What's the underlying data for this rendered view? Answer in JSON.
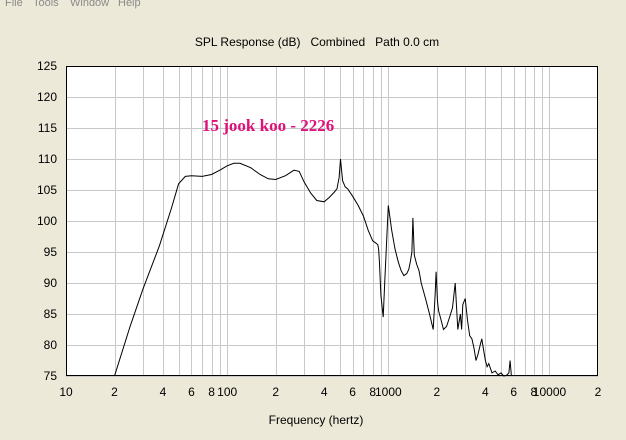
{
  "menu": {
    "items": [
      "File",
      "Tools",
      "Window",
      "Help"
    ]
  },
  "chart_data": {
    "type": "line",
    "title": "SPL Response (dB)   Combined   Path 0.0 cm",
    "annotation": "15 jook koo - 2226",
    "xlabel": "Frequency (hertz)",
    "ylabel": "",
    "x_scale": "log",
    "xlim": [
      10,
      20000
    ],
    "ylim": [
      75,
      125
    ],
    "grid": true,
    "yticks": [
      75,
      80,
      85,
      90,
      95,
      100,
      105,
      110,
      115,
      120,
      125
    ],
    "xticks": [
      {
        "value": 10,
        "label": "10"
      },
      {
        "value": 20,
        "label": "2"
      },
      {
        "value": 40,
        "label": "4"
      },
      {
        "value": 60,
        "label": "6"
      },
      {
        "value": 80,
        "label": "8"
      },
      {
        "value": 100,
        "label": "100"
      },
      {
        "value": 200,
        "label": "2"
      },
      {
        "value": 400,
        "label": "4"
      },
      {
        "value": 600,
        "label": "6"
      },
      {
        "value": 800,
        "label": "8"
      },
      {
        "value": 1000,
        "label": "1000"
      },
      {
        "value": 2000,
        "label": "2"
      },
      {
        "value": 4000,
        "label": "4"
      },
      {
        "value": 6000,
        "label": "6"
      },
      {
        "value": 8000,
        "label": "8"
      },
      {
        "value": 10000,
        "label": "10000"
      },
      {
        "value": 20000,
        "label": "2"
      }
    ],
    "colors": {
      "line": "#000000",
      "annotation": "#e0107a",
      "grid": "#c8c8c8",
      "plot_bg": "#ffffff"
    },
    "series": [
      {
        "x": [
          20,
          25,
          30,
          38,
          45,
          50,
          55,
          60,
          70,
          80,
          90,
          100,
          110,
          120,
          140,
          160,
          180,
          200,
          230,
          260,
          280,
          300,
          330,
          360,
          400,
          430,
          460,
          480,
          495,
          505,
          520,
          540,
          560,
          600,
          650,
          700,
          750,
          800,
          830,
          860,
          870,
          880,
          900,
          930,
          950,
          1000,
          1050,
          1100,
          1150,
          1200,
          1250,
          1300,
          1340,
          1370,
          1400,
          1420,
          1450,
          1500,
          1550,
          1600,
          1700,
          1800,
          1900,
          1950,
          1980,
          2020,
          2050,
          2100,
          2150,
          2200,
          2300,
          2400,
          2500,
          2600,
          2700,
          2800,
          2850,
          2900,
          3000,
          3100,
          3200,
          3300,
          3400,
          3500,
          3600,
          3700,
          3800,
          3900,
          4000,
          4100,
          4200,
          4400,
          4600,
          4800,
          5000,
          5200,
          5400,
          5600,
          5700,
          5800
        ],
        "y": [
          75,
          83,
          89,
          96,
          102,
          106,
          107.2,
          107.3,
          107.2,
          107.5,
          108.2,
          108.9,
          109.3,
          109.3,
          108.6,
          107.5,
          106.8,
          106.7,
          107.3,
          108.2,
          108,
          106.3,
          104.5,
          103.3,
          103.1,
          103.8,
          104.6,
          105.2,
          107,
          110,
          106.5,
          105.5,
          105.2,
          104,
          102.5,
          100.8,
          98.5,
          96.8,
          96.5,
          96.2,
          95.5,
          93.5,
          88,
          84.5,
          90,
          102.5,
          98.5,
          95.5,
          93.5,
          92,
          91.2,
          91.5,
          92.2,
          93.5,
          95,
          100.5,
          94.5,
          93,
          92,
          90,
          87.5,
          85,
          82.5,
          88,
          91.8,
          87,
          85.5,
          84.5,
          83.5,
          82.5,
          83,
          84.5,
          86,
          90,
          82.5,
          85,
          82.5,
          86.5,
          87.5,
          84,
          81.5,
          81,
          79.5,
          77.5,
          78.5,
          79.8,
          81,
          79.2,
          77.5,
          76.5,
          77,
          75.5,
          75.8,
          75.2,
          75.5,
          75,
          75.1,
          75.5,
          77.5,
          75
        ]
      }
    ]
  }
}
